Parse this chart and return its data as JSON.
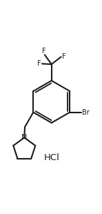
{
  "bg_color": "#ffffff",
  "line_color": "#1a1a1a",
  "line_width": 1.5,
  "font_size_label": 7.0,
  "font_size_hcl": 9.5,
  "title": "HCl",
  "label_Br": "Br",
  "label_N": "N",
  "label_F1": "F",
  "label_F2": "F",
  "label_F3": "F",
  "figsize": [
    1.48,
    3.1
  ],
  "dpi": 100
}
